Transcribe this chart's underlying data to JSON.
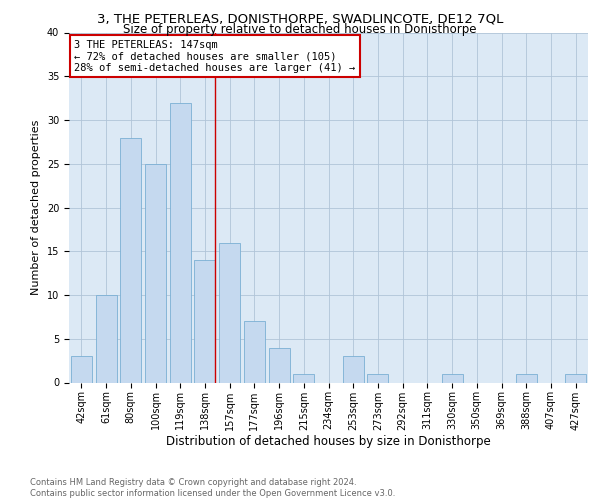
{
  "title": "3, THE PETERLEAS, DONISTHORPE, SWADLINCOTE, DE12 7QL",
  "subtitle": "Size of property relative to detached houses in Donisthorpe",
  "xlabel": "Distribution of detached houses by size in Donisthorpe",
  "ylabel": "Number of detached properties",
  "categories": [
    "42sqm",
    "61sqm",
    "80sqm",
    "100sqm",
    "119sqm",
    "138sqm",
    "157sqm",
    "177sqm",
    "196sqm",
    "215sqm",
    "234sqm",
    "253sqm",
    "273sqm",
    "292sqm",
    "311sqm",
    "330sqm",
    "350sqm",
    "369sqm",
    "388sqm",
    "407sqm",
    "427sqm"
  ],
  "values": [
    3,
    10,
    28,
    25,
    32,
    14,
    16,
    7,
    4,
    1,
    0,
    3,
    1,
    0,
    0,
    1,
    0,
    0,
    1,
    0,
    1
  ],
  "bar_color": "#c5d9ef",
  "bar_edge_color": "#7bafd4",
  "highlight_bar_index": 5,
  "ylim": [
    0,
    40
  ],
  "yticks": [
    0,
    5,
    10,
    15,
    20,
    25,
    30,
    35,
    40
  ],
  "annotation_line1": "3 THE PETERLEAS: 147sqm",
  "annotation_line2": "← 72% of detached houses are smaller (105)",
  "annotation_line3": "28% of semi-detached houses are larger (41) →",
  "annotation_box_color": "#ffffff",
  "annotation_box_edge_color": "#cc0000",
  "vline_color": "#cc0000",
  "background_color": "#ffffff",
  "plot_bg_color": "#dce9f5",
  "grid_color": "#b0c4d8",
  "footer": "Contains HM Land Registry data © Crown copyright and database right 2024.\nContains public sector information licensed under the Open Government Licence v3.0.",
  "title_fontsize": 9.5,
  "subtitle_fontsize": 8.5,
  "xlabel_fontsize": 8.5,
  "ylabel_fontsize": 8,
  "tick_fontsize": 7,
  "annotation_fontsize": 7.5,
  "footer_fontsize": 6
}
